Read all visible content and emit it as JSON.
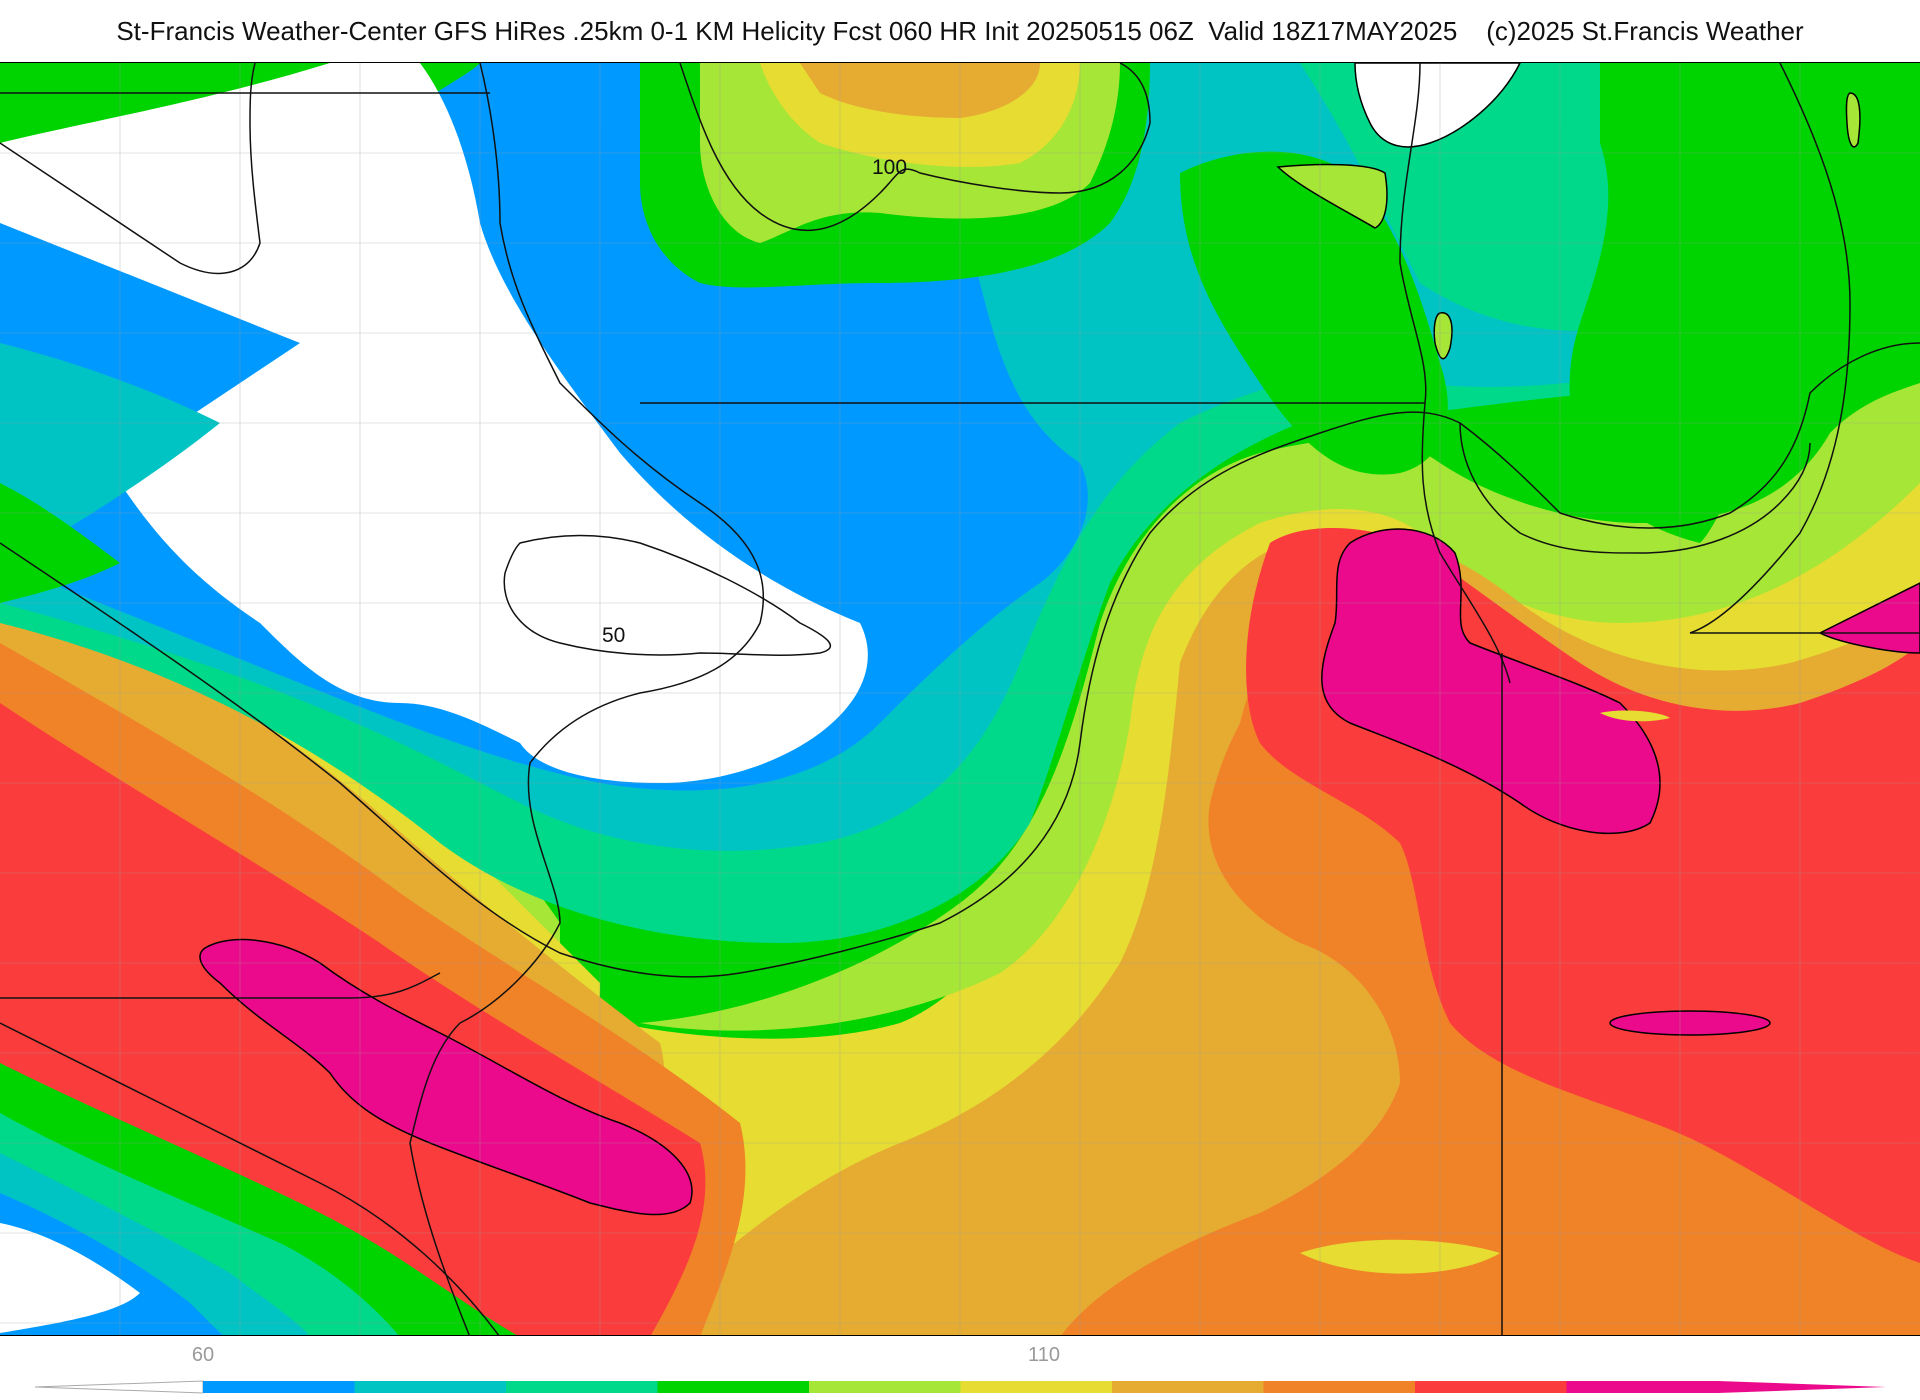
{
  "header": {
    "title": "St-Francis Weather-Center GFS HiRes .25km 0-1 KM Helicity Fcst 060 HR Init 20250515 06Z  Valid 18Z17MAY2025    (c)2025 St.Francis Weather"
  },
  "map": {
    "contour_labels": [
      "100",
      "50"
    ]
  },
  "colorbar": {
    "tick_labels": [
      "60",
      "110"
    ],
    "colors": [
      "#0099ff",
      "#00c4c4",
      "#00d98a",
      "#00d400",
      "#a6e636",
      "#e6dc32",
      "#e6ac32",
      "#f08228",
      "#fa3c3c",
      "#ec0a8c"
    ]
  }
}
